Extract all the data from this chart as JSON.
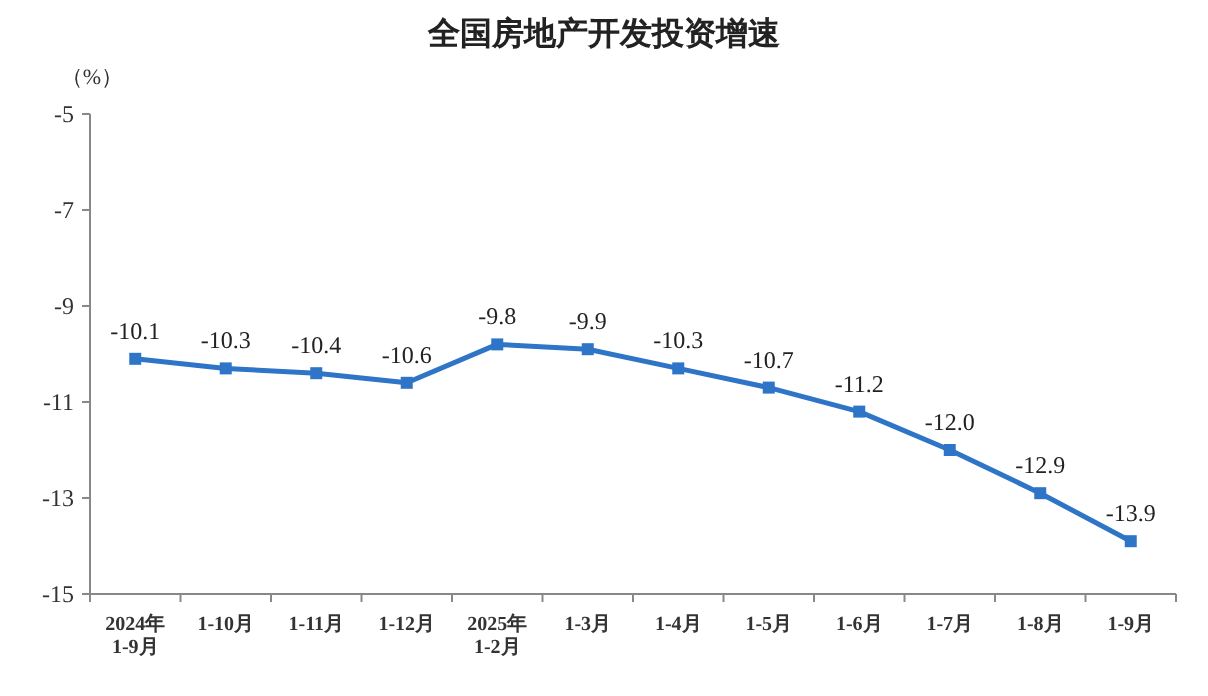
{
  "chart_data": {
    "type": "line",
    "title": "全国房地产开发投资增速",
    "ylabel": "（%）",
    "categories": [
      "2024年\n1-9月",
      "1-10月",
      "1-11月",
      "1-12月",
      "2025年\n1-2月",
      "1-3月",
      "1-4月",
      "1-5月",
      "1-6月",
      "1-7月",
      "1-8月",
      "1-9月"
    ],
    "series": [
      {
        "color": "#2e75c8",
        "values": [
          -10.1,
          -10.3,
          -10.4,
          -10.6,
          -9.8,
          -9.9,
          -10.3,
          -10.7,
          -11.2,
          -12.0,
          -12.9,
          -13.9
        ],
        "value_labels": [
          "-10.1",
          "-10.3",
          "-10.4",
          "-10.6",
          "-9.8",
          "-9.9",
          "-10.3",
          "-10.7",
          "-11.2",
          "-12.0",
          "-12.9",
          "-13.9"
        ]
      }
    ],
    "ylim": [
      -15,
      -5
    ],
    "yticks": [
      -5,
      -7,
      -9,
      -11,
      -13,
      -15
    ],
    "grid": false,
    "marker": "square",
    "line_style": "solid"
  }
}
